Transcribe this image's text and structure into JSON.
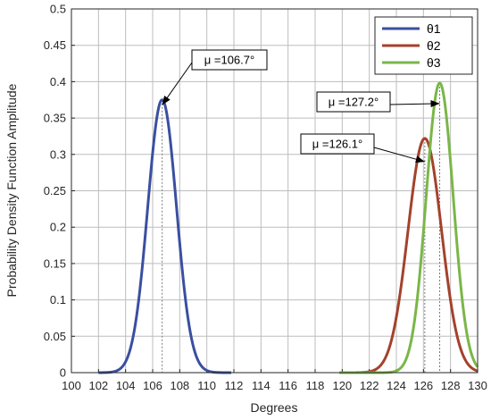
{
  "chart_data": {
    "type": "line",
    "xlabel": "Degrees",
    "ylabel": "Probability Density Function Amplitude",
    "xlim": [
      100,
      130
    ],
    "ylim": [
      0,
      0.5
    ],
    "x_ticks": [
      "100",
      "102",
      "104",
      "106",
      "108",
      "110",
      "112",
      "114",
      "116",
      "118",
      "120",
      "122",
      "124",
      "126",
      "128",
      "130"
    ],
    "y_ticks": [
      "0",
      "0.05",
      "0.1",
      "0.15",
      "0.2",
      "0.25",
      "0.3",
      "0.35",
      "0.4",
      "0.45",
      "0.5"
    ],
    "grid": true,
    "legend_position": "top-right",
    "series": [
      {
        "name": "θ1",
        "mean": 106.7,
        "peak": 0.375,
        "x_range": [
          102,
          111.8
        ],
        "color": "#3a4fa0"
      },
      {
        "name": "θ2",
        "mean": 126.1,
        "peak": 0.322,
        "x_range": [
          119.8,
          130
        ],
        "color": "#a3422c"
      },
      {
        "name": "θ3",
        "mean": 127.2,
        "peak": 0.398,
        "x_range": [
          119.8,
          130
        ],
        "color": "#7ab648"
      }
    ],
    "annotations": [
      {
        "text": "μ =106.7°",
        "target": [
          106.7,
          0.368
        ]
      },
      {
        "text": "μ =127.2°",
        "target": [
          127.2,
          0.37
        ]
      },
      {
        "text": "μ =126.1°",
        "target": [
          126.1,
          0.29
        ]
      }
    ]
  }
}
